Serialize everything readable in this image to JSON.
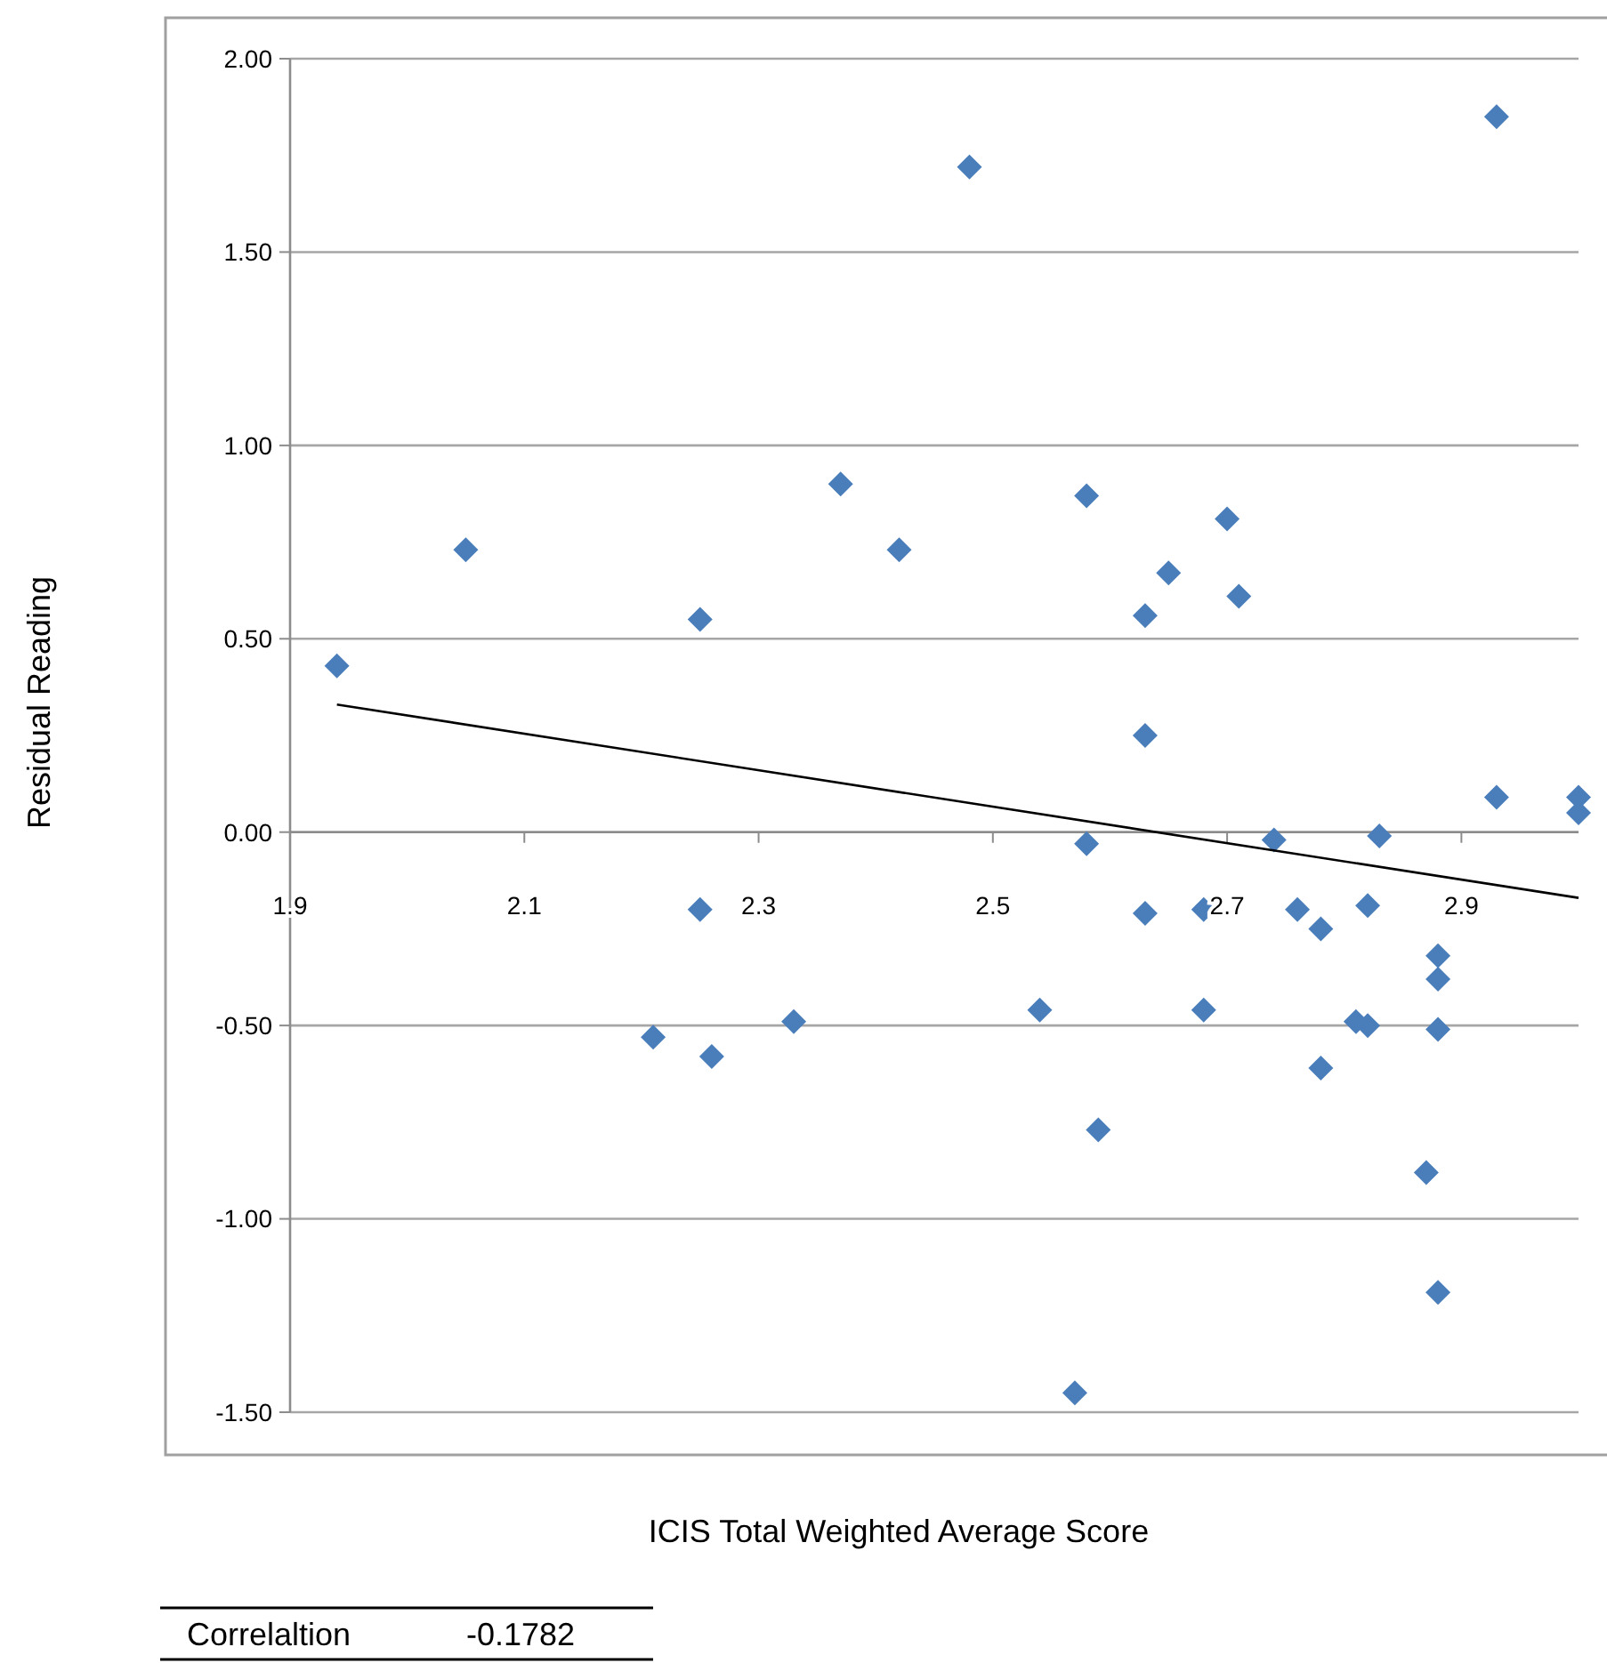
{
  "chart_data": {
    "type": "scatter",
    "xlabel": "ICIS Total Weighted Average Score",
    "ylabel": "Residual Reading",
    "xlim": [
      1.9,
      3.0
    ],
    "xticks": [
      1.9,
      2.1,
      2.3,
      2.5,
      2.7,
      2.9
    ],
    "ylim": [
      -1.5,
      2.0
    ],
    "yticks": [
      {
        "value": -1.5,
        "label": "-1.50"
      },
      {
        "value": -1.0,
        "label": "-1.00"
      },
      {
        "value": -0.5,
        "label": "-0.50"
      },
      {
        "value": 0,
        "label": "0.00"
      },
      {
        "value": 0.5,
        "label": "0.50"
      },
      {
        "value": 1.0,
        "label": "1.00"
      },
      {
        "value": 1.5,
        "label": "1.50"
      },
      {
        "value": 2.0,
        "label": "2.00"
      }
    ],
    "grid": "y",
    "series": [
      {
        "type": "scatter",
        "color": "#4a7ebb",
        "marker": "diamond",
        "x": [
          1.94,
          2.05,
          2.25,
          2.37,
          2.42,
          2.48,
          2.93,
          2.58,
          2.7,
          2.65,
          2.71,
          2.63,
          2.63,
          2.93,
          3.0,
          3.0,
          2.58,
          2.74,
          2.83,
          2.63,
          2.68,
          2.76,
          2.78,
          2.82,
          2.88,
          2.88,
          2.88,
          2.54,
          2.68,
          2.81,
          2.82,
          2.78,
          2.59,
          2.87,
          2.88,
          2.57,
          2.25,
          2.21,
          2.26,
          2.33
        ],
        "values": [
          0.43,
          0.73,
          0.55,
          0.9,
          0.73,
          1.72,
          1.85,
          0.87,
          0.81,
          0.67,
          0.61,
          0.56,
          0.25,
          0.09,
          0.09,
          0.05,
          -0.03,
          -0.02,
          -0.01,
          -0.21,
          -0.2,
          -0.2,
          -0.25,
          -0.19,
          -0.32,
          -0.38,
          -0.51,
          -0.46,
          -0.46,
          -0.49,
          -0.5,
          -0.61,
          -0.77,
          -0.88,
          -1.19,
          -1.45,
          -0.2,
          -0.53,
          -0.58,
          -0.49
        ]
      },
      {
        "type": "line",
        "color": "#000000",
        "marker": "none",
        "line_style": "solid",
        "x": [
          1.94,
          3.0
        ],
        "values": [
          0.33,
          -0.17
        ]
      }
    ],
    "annotations": [
      "Correlaltion",
      "-0.1782"
    ]
  }
}
